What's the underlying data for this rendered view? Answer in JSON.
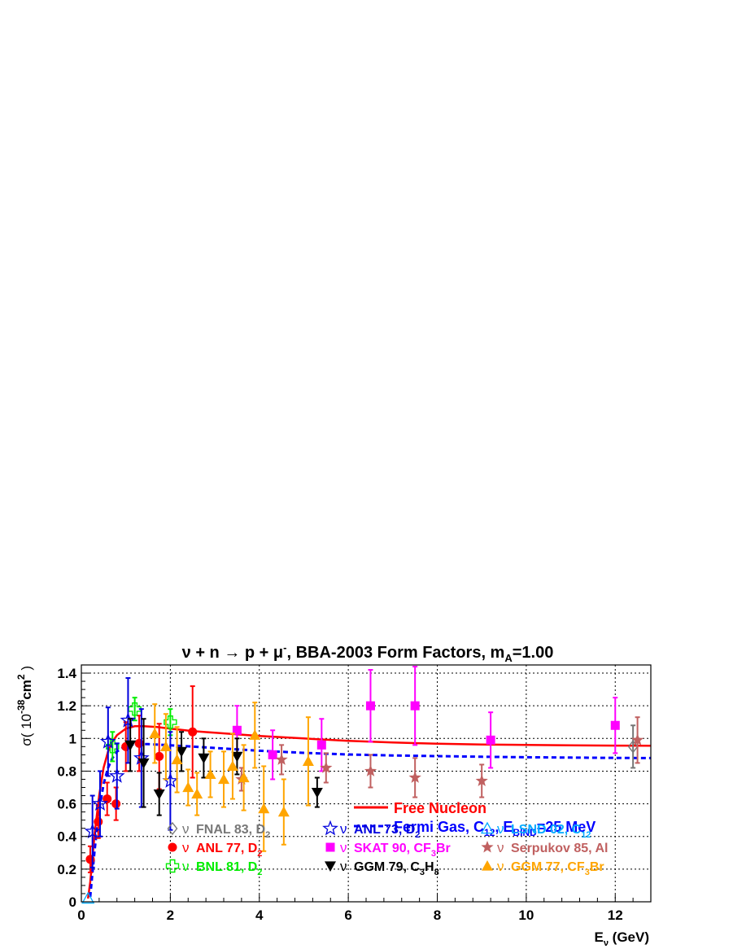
{
  "chart_data": {
    "type": "scatter",
    "title": {
      "prefix": "ν + n → p + μ",
      "sup": "-",
      "middle": ", BBA-2003 Form Factors, m",
      "sub": "A",
      "suffix": "=1.00"
    },
    "xlabel": {
      "main": "E",
      "sub": "ν",
      "unit": " (GeV)"
    },
    "ylabel": {
      "main": "σ( 10",
      "sup1": "-38",
      "cm": "cm",
      "sup2": "2",
      "close": " )"
    },
    "xlim": [
      0,
      12.8
    ],
    "ylim": [
      0,
      1.45
    ],
    "grid": true,
    "xticks": [
      "0",
      "2",
      "4",
      "6",
      "8",
      "10",
      "12"
    ],
    "yticks": [
      "0",
      "0.2",
      "0.4",
      "0.6",
      "0.8",
      "1",
      "1.2",
      "1.4"
    ],
    "curves": [
      {
        "name": "Free Nucleon",
        "color": "#ff0000",
        "style": "solid",
        "points": [
          [
            0.15,
            0.02
          ],
          [
            0.2,
            0.12
          ],
          [
            0.3,
            0.42
          ],
          [
            0.4,
            0.65
          ],
          [
            0.5,
            0.82
          ],
          [
            0.6,
            0.92
          ],
          [
            0.7,
            0.98
          ],
          [
            0.8,
            1.02
          ],
          [
            1.0,
            1.06
          ],
          [
            1.2,
            1.075
          ],
          [
            1.4,
            1.075
          ],
          [
            1.7,
            1.07
          ],
          [
            2,
            1.06
          ],
          [
            2.5,
            1.045
          ],
          [
            3,
            1.035
          ],
          [
            4,
            1.015
          ],
          [
            5,
            1.0
          ],
          [
            6,
            0.985
          ],
          [
            7,
            0.975
          ],
          [
            8,
            0.968
          ],
          [
            9,
            0.963
          ],
          [
            10,
            0.96
          ],
          [
            11,
            0.958
          ],
          [
            12,
            0.956
          ],
          [
            12.8,
            0.955
          ]
        ]
      },
      {
        "name": "Fermi Gas, C12, EBIND=25 MeV",
        "color": "#0000ff",
        "style": "dashed",
        "points": [
          [
            0.2,
            0.03
          ],
          [
            0.25,
            0.18
          ],
          [
            0.3,
            0.32
          ],
          [
            0.4,
            0.56
          ],
          [
            0.5,
            0.72
          ],
          [
            0.6,
            0.82
          ],
          [
            0.7,
            0.88
          ],
          [
            0.8,
            0.92
          ],
          [
            1.0,
            0.955
          ],
          [
            1.2,
            0.965
          ],
          [
            1.5,
            0.965
          ],
          [
            2,
            0.958
          ],
          [
            2.5,
            0.95
          ],
          [
            3,
            0.942
          ],
          [
            4,
            0.925
          ],
          [
            5,
            0.912
          ],
          [
            6,
            0.902
          ],
          [
            7,
            0.896
          ],
          [
            8,
            0.892
          ],
          [
            9,
            0.888
          ],
          [
            10,
            0.885
          ],
          [
            11,
            0.883
          ],
          [
            12,
            0.881
          ],
          [
            12.8,
            0.88
          ]
        ]
      }
    ],
    "series": [
      {
        "name": "FNAL 83, D2",
        "color": "#777777",
        "marker": "diamond-open",
        "points": [
          [
            12.4,
            0.95,
            0.13
          ]
        ]
      },
      {
        "name": "ANL 77, D2",
        "color": "#ff0000",
        "marker": "circle",
        "points": [
          [
            0.2,
            0.26,
            0.08
          ],
          [
            0.38,
            0.49,
            0.1
          ],
          [
            0.58,
            0.63,
            0.1
          ],
          [
            0.78,
            0.6,
            0.1
          ],
          [
            1.0,
            0.95,
            0.15
          ],
          [
            1.3,
            0.97,
            0.17
          ],
          [
            1.75,
            0.89,
            0.2
          ],
          [
            2.5,
            1.04,
            0.28
          ]
        ]
      },
      {
        "name": "BNL 81, D2",
        "color": "#00ee00",
        "marker": "cross-open",
        "points": [
          [
            0.7,
            0.95,
            0.09
          ],
          [
            1.2,
            1.18,
            0.07
          ],
          [
            2.0,
            1.1,
            0.08
          ]
        ]
      },
      {
        "name": "ANL 73, D2",
        "color": "#0000dd",
        "marker": "star-open",
        "points": [
          [
            0.25,
            0.43,
            0.22
          ],
          [
            0.42,
            0.6,
            0.2
          ],
          [
            0.6,
            0.98,
            0.21
          ],
          [
            0.8,
            0.77,
            0.2
          ],
          [
            1.05,
            1.11,
            0.26
          ],
          [
            1.35,
            0.88,
            0.3
          ],
          [
            2.0,
            0.74,
            0.3
          ]
        ]
      },
      {
        "name": "SKAT 90, CF3Br",
        "color": "#ff00ff",
        "marker": "square",
        "points": [
          [
            3.5,
            1.05,
            0.15
          ],
          [
            4.3,
            0.9,
            0.15
          ],
          [
            5.4,
            0.96,
            0.16
          ],
          [
            6.5,
            1.2,
            0.22
          ],
          [
            7.5,
            1.2,
            0.24
          ],
          [
            9.2,
            0.99,
            0.17
          ],
          [
            12.0,
            1.08,
            0.17
          ]
        ]
      },
      {
        "name": "Serpukov 85, Al",
        "color": "#c06060",
        "marker": "star",
        "points": [
          [
            3.6,
            0.75,
            0.07
          ],
          [
            4.5,
            0.87,
            0.09
          ],
          [
            5.5,
            0.82,
            0.09
          ],
          [
            6.5,
            0.8,
            0.1
          ],
          [
            7.5,
            0.76,
            0.12
          ],
          [
            9.0,
            0.74,
            0.1
          ],
          [
            12.5,
            0.99,
            0.14
          ]
        ]
      },
      {
        "name": "LSND 02, C12",
        "color": "#00aaff",
        "marker": "triangle-open",
        "points": [
          [
            0.15,
            0.02,
            0.0
          ]
        ]
      },
      {
        "name": "GGM 79, C3H8",
        "color": "#000000",
        "marker": "triangle-down",
        "points": [
          [
            1.1,
            0.96,
            0.16
          ],
          [
            1.4,
            0.85,
            0.27
          ],
          [
            1.75,
            0.66,
            0.13
          ],
          [
            2.25,
            0.92,
            0.12
          ],
          [
            2.75,
            0.88,
            0.12
          ],
          [
            3.5,
            0.89,
            0.11
          ],
          [
            5.3,
            0.67,
            0.09
          ]
        ]
      },
      {
        "name": "GGM 77, CF3Br",
        "color": "#ffa500",
        "marker": "triangle",
        "points": [
          [
            1.65,
            1.03,
            0.18
          ],
          [
            1.9,
            0.95,
            0.2
          ],
          [
            2.15,
            0.87,
            0.2
          ],
          [
            2.4,
            0.7,
            0.11
          ],
          [
            2.6,
            0.66,
            0.13
          ],
          [
            2.9,
            0.78,
            0.14
          ],
          [
            3.2,
            0.75,
            0.17
          ],
          [
            3.4,
            0.83,
            0.2
          ],
          [
            3.65,
            0.76,
            0.2
          ],
          [
            3.9,
            1.02,
            0.2
          ],
          [
            4.1,
            0.57,
            0.26
          ],
          [
            4.55,
            0.55,
            0.2
          ],
          [
            5.1,
            0.86,
            0.27
          ]
        ]
      }
    ],
    "legend_top": [
      {
        "label": "Free Nucleon",
        "color": "#ff0000",
        "style": "solid"
      },
      {
        "label_parts": [
          "Fermi Gas, C",
          "12",
          ", E",
          "BIND",
          "=25 MeV"
        ],
        "color": "#0000ff",
        "style": "dashed"
      }
    ],
    "legend_bottom": [
      {
        "nu": "ν",
        "parts": [
          "FNAL 83, D",
          "2"
        ],
        "color": "#777777",
        "marker": "diamond-open"
      },
      {
        "nu": "ν",
        "parts": [
          "ANL 73, D",
          "2"
        ],
        "color": "#0000dd",
        "marker": "star-open"
      },
      {
        "nu": "ν",
        "parts": [
          "LSND 02, C",
          "12"
        ],
        "color": "#00aaff",
        "marker": "triangle-open"
      },
      {
        "nu": "ν",
        "parts": [
          "ANL 77, D",
          "2"
        ],
        "color": "#ff0000",
        "marker": "circle"
      },
      {
        "nu": "ν",
        "parts": [
          "SKAT 90, CF",
          "3",
          "Br"
        ],
        "color": "#ff00ff",
        "marker": "square"
      },
      {
        "nu": "ν",
        "parts": [
          "Serpukov 85, Al"
        ],
        "color": "#c06060",
        "marker": "star"
      },
      {
        "nu": "ν",
        "parts": [
          "BNL 81, D",
          "2"
        ],
        "color": "#00ee00",
        "marker": "cross-open"
      },
      {
        "nu": "ν",
        "parts": [
          "GGM 79, C",
          "3",
          "H",
          "8"
        ],
        "color": "#000000",
        "marker": "triangle-down"
      },
      {
        "nu": "ν",
        "parts": [
          "GGM 77, CF",
          "3",
          "Br"
        ],
        "color": "#ffa500",
        "marker": "triangle"
      }
    ]
  }
}
